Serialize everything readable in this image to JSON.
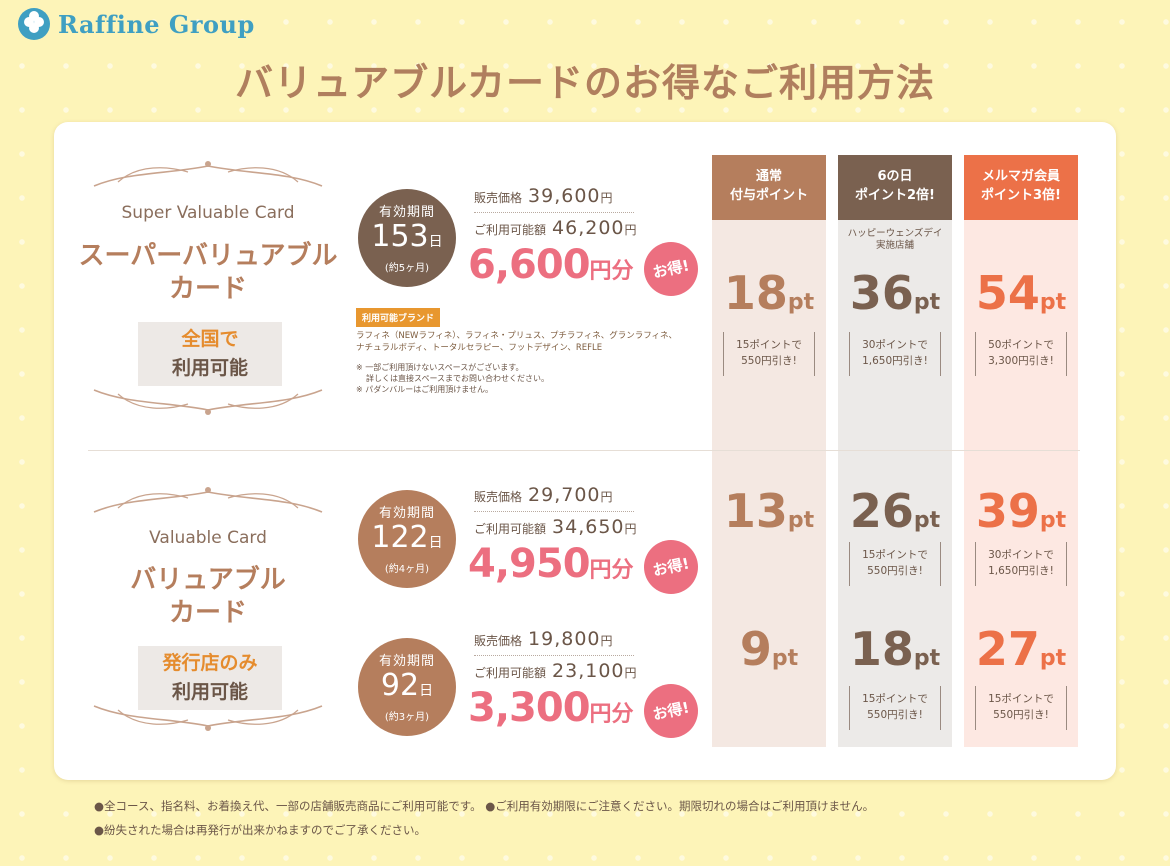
{
  "header": {
    "brand": "Raffine Group",
    "title": "バリュアブルカードのお得なご利用方法"
  },
  "columns": [
    {
      "header_line1": "通常",
      "header_line2": "付与ポイント",
      "color": "#b57e5d",
      "bg": "#f4e8e2"
    },
    {
      "header_line1": "6の日",
      "header_line2": "ポイント2倍!",
      "color": "#7a6150",
      "bg": "#eceae8",
      "note_line1": "ハッピーウェンズデイ",
      "note_line2": "実施店舗"
    },
    {
      "header_line1": "メルマガ会員",
      "header_line2": "ポイント3倍!",
      "color": "#ec7148",
      "bg": "#fde8e2"
    }
  ],
  "super": {
    "name_en": "Super Valuable Card",
    "name_jp_line1": "スーパーバリュアブル",
    "name_jp_line2": "カード",
    "avail_line1": "全国で",
    "avail_line2": "利用可能",
    "period_label": "有効期間",
    "days": "153",
    "days_unit": "日",
    "months": "(約5ヶ月)",
    "price_label": "販売価格",
    "price": "39,600",
    "usable_label": "ご利用可能額",
    "usable": "46,200",
    "yen": "円",
    "gain": "6,600",
    "gain_unit": "円分",
    "otoku": "お得!",
    "brand_tag": "利用可能ブランド",
    "brand_line1": "ラフィネ（NEWラフィネ）、ラフィネ・プリュス、プチラフィネ、グランラフィネ、",
    "brand_line2": "ナチュラルボディ、トータルセラピー、フットデザイン、REFLE",
    "note1": "※ 一部ご利用頂けないスペースがございます。",
    "note2": "詳しくは直接スペースまでお問い合わせください。",
    "note3": "※ パダンバルーはご利用頂けません。",
    "points": [
      {
        "value": "18",
        "unit": "pt",
        "note1": "15ポイントで",
        "note2": "550円引き!"
      },
      {
        "value": "36",
        "unit": "pt",
        "note1": "30ポイントで",
        "note2": "1,650円引き!"
      },
      {
        "value": "54",
        "unit": "pt",
        "note1": "50ポイントで",
        "note2": "3,300円引き!"
      }
    ]
  },
  "valuable": {
    "name_en": "Valuable Card",
    "name_jp_line1": "バリュアブル",
    "name_jp_line2": "カード",
    "avail_line1": "発行店のみ",
    "avail_line2": "利用可能",
    "tiers": [
      {
        "period_label": "有効期間",
        "days": "122",
        "days_unit": "日",
        "months": "(約4ヶ月)",
        "price_label": "販売価格",
        "price": "29,700",
        "usable_label": "ご利用可能額",
        "usable": "34,650",
        "yen": "円",
        "gain": "4,950",
        "gain_unit": "円分",
        "otoku": "お得!",
        "points": [
          {
            "value": "13",
            "unit": "pt"
          },
          {
            "value": "26",
            "unit": "pt",
            "note1": "15ポイントで",
            "note2": "550円引き!"
          },
          {
            "value": "39",
            "unit": "pt",
            "note1": "30ポイントで",
            "note2": "1,650円引き!"
          }
        ]
      },
      {
        "period_label": "有効期間",
        "days": "92",
        "days_unit": "日",
        "months": "(約3ヶ月)",
        "price_label": "販売価格",
        "price": "19,800",
        "usable_label": "ご利用可能額",
        "usable": "23,100",
        "yen": "円",
        "gain": "3,300",
        "gain_unit": "円分",
        "otoku": "お得!",
        "points": [
          {
            "value": "9",
            "unit": "pt"
          },
          {
            "value": "18",
            "unit": "pt",
            "note1": "15ポイントで",
            "note2": "550円引き!"
          },
          {
            "value": "27",
            "unit": "pt",
            "note1": "15ポイントで",
            "note2": "550円引き!"
          }
        ]
      }
    ]
  },
  "footnotes": {
    "line1": "●全コース、指名料、お着換え代、一部の店舗販売商品にご利用可能です。 ●ご利用有効期限にご注意ください。期限切れの場合はご利用頂けません。",
    "line2": "●紛失された場合は再発行が出来かねますのでご了承ください。"
  }
}
